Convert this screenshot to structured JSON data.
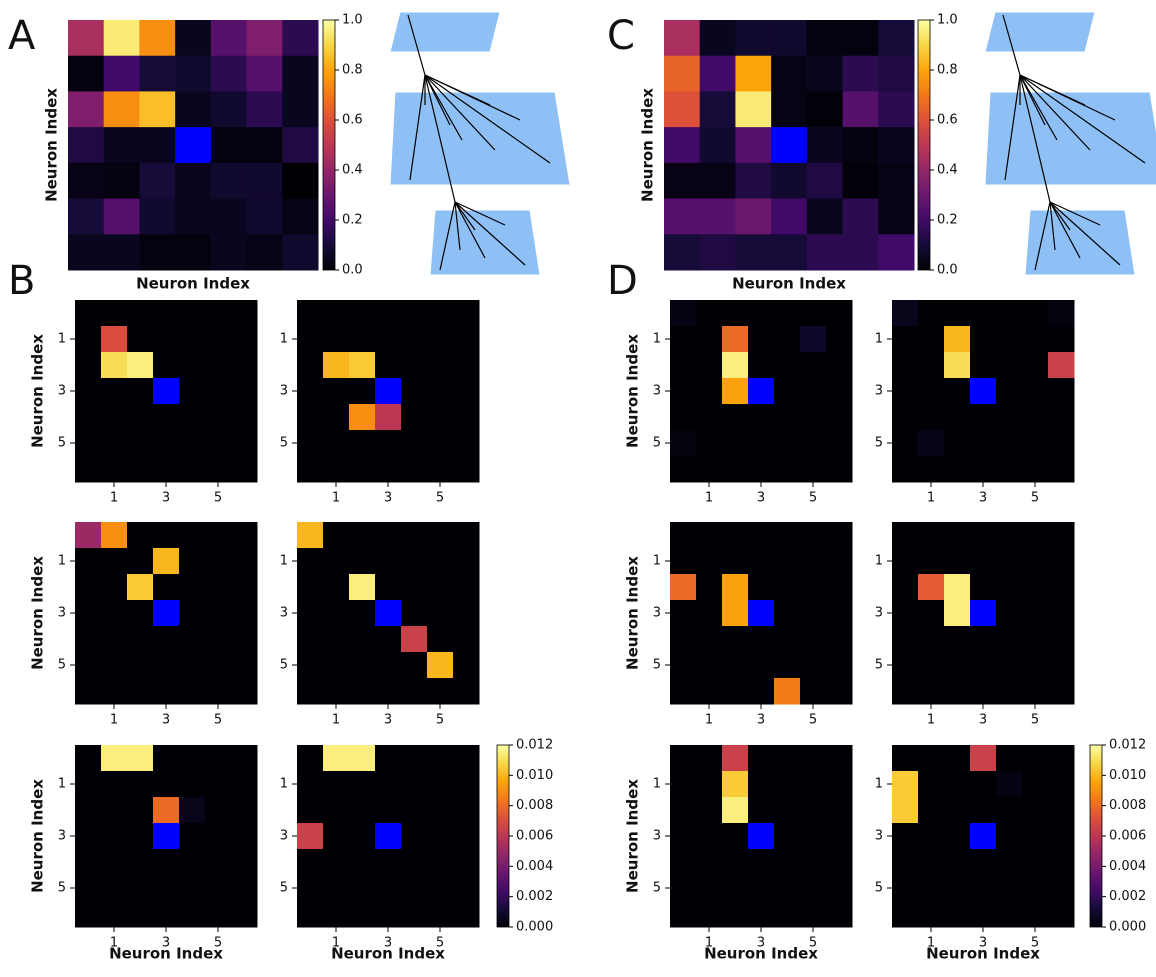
{
  "panel_labels": [
    "A",
    "B",
    "C",
    "D"
  ],
  "chart_data": [
    {
      "type": "heatmap",
      "colormap": "inferno",
      "null_color": "#0000ff",
      "xlabel": "Neuron Index",
      "ylabel": "Neuron Index",
      "zlim": [
        0,
        1
      ],
      "zticks": [
        {
          "value": 0,
          "label": "0.0"
        },
        0.2,
        0.4,
        0.6,
        0.8,
        {
          "value": 1,
          "label": "1.0"
        }
      ],
      "values": [
        [
          0.45,
          0.95,
          0.75,
          0.05,
          0.25,
          0.35,
          0.15
        ],
        [
          0.02,
          0.2,
          0.1,
          0.08,
          0.15,
          0.25,
          0.05
        ],
        [
          0.35,
          0.75,
          0.85,
          0.05,
          0.08,
          0.15,
          0.05
        ],
        [
          0.12,
          0.05,
          0.05,
          null,
          0.02,
          0.02,
          0.12
        ],
        [
          0.03,
          0.02,
          0.1,
          0.05,
          0.08,
          0.08,
          0.0
        ],
        [
          0.1,
          0.25,
          0.08,
          0.05,
          0.05,
          0.08,
          0.03
        ],
        [
          0.05,
          0.05,
          0.02,
          0.02,
          0.05,
          0.03,
          0.08
        ]
      ]
    },
    {
      "type": "heatmap",
      "colormap": "inferno",
      "null_color": "#0000ff",
      "xlabel": "Neuron Index",
      "ylabel": "Neuron Index",
      "zlim": [
        0,
        1
      ],
      "zticks": [
        {
          "value": 0,
          "label": "0.0"
        },
        0.2,
        0.4,
        0.6,
        0.8,
        {
          "value": 1,
          "label": "1.0"
        }
      ],
      "values": [
        [
          0.45,
          0.05,
          0.08,
          0.08,
          0.02,
          0.02,
          0.1
        ],
        [
          0.65,
          0.2,
          0.8,
          0.03,
          0.05,
          0.15,
          0.12
        ],
        [
          0.6,
          0.1,
          0.95,
          0.03,
          0.01,
          0.25,
          0.15
        ],
        [
          0.2,
          0.08,
          0.25,
          null,
          0.05,
          0.02,
          0.05
        ],
        [
          0.03,
          0.03,
          0.12,
          0.08,
          0.12,
          0.01,
          0.03
        ],
        [
          0.25,
          0.25,
          0.3,
          0.2,
          0.05,
          0.15,
          0.03
        ],
        [
          0.1,
          0.12,
          0.1,
          0.1,
          0.15,
          0.15,
          0.2
        ]
      ]
    },
    {
      "type": "heatmap",
      "colormap": "inferno",
      "null_color": "#0000ff",
      "ylabel": "Neuron Index",
      "zlim": [
        0,
        0.012
      ],
      "xticks": [
        1,
        3,
        5
      ],
      "yticks": [
        1,
        3,
        5
      ],
      "values": [
        [
          0,
          0,
          0,
          0,
          0,
          0,
          0
        ],
        [
          0,
          0.007,
          0,
          0,
          0,
          0,
          0
        ],
        [
          0,
          0.011,
          0.0115,
          0,
          0,
          0,
          0
        ],
        [
          0,
          0,
          0,
          null,
          0,
          0,
          0
        ],
        [
          0,
          0,
          0,
          0,
          0,
          0,
          0
        ],
        [
          0,
          0,
          0,
          0,
          0,
          0,
          0
        ],
        [
          0,
          0,
          0,
          0,
          0,
          0,
          0
        ]
      ]
    },
    {
      "type": "heatmap",
      "colormap": "inferno",
      "null_color": "#0000ff",
      "zlim": [
        0,
        0.012
      ],
      "xticks": [
        1,
        3,
        5
      ],
      "yticks": [
        1,
        3,
        5
      ],
      "values": [
        [
          0,
          0,
          0,
          0,
          0,
          0,
          0
        ],
        [
          0,
          0,
          0,
          0,
          0,
          0,
          0
        ],
        [
          0,
          0.01,
          0.0105,
          0,
          0,
          0,
          0
        ],
        [
          0,
          0,
          0,
          null,
          0,
          0,
          0
        ],
        [
          0,
          0,
          0.009,
          0.006,
          0,
          0,
          0
        ],
        [
          0,
          0,
          0,
          0,
          0,
          0,
          0
        ],
        [
          0,
          0,
          0,
          0,
          0,
          0,
          0
        ]
      ]
    },
    {
      "type": "heatmap",
      "colormap": "inferno",
      "null_color": "#0000ff",
      "ylabel": "Neuron Index",
      "zlim": [
        0,
        0.012
      ],
      "xticks": [
        1,
        3,
        5
      ],
      "yticks": [
        1,
        3,
        5
      ],
      "values": [
        [
          0.005,
          0.009,
          0,
          0,
          0,
          0,
          0
        ],
        [
          0,
          0,
          0,
          0.01,
          0,
          0,
          0
        ],
        [
          0,
          0,
          0.0105,
          0,
          0,
          0,
          0
        ],
        [
          0,
          0,
          0,
          null,
          0,
          0,
          0
        ],
        [
          0,
          0,
          0,
          0,
          0,
          0,
          0
        ],
        [
          0,
          0,
          0,
          0,
          0,
          0,
          0
        ],
        [
          0,
          0,
          0,
          0,
          0,
          0,
          0
        ]
      ]
    },
    {
      "type": "heatmap",
      "colormap": "inferno",
      "null_color": "#0000ff",
      "zlim": [
        0,
        0.012
      ],
      "xticks": [
        1,
        3,
        5
      ],
      "yticks": [
        1,
        3,
        5
      ],
      "values": [
        [
          0.01,
          0,
          0,
          0,
          0,
          0,
          0
        ],
        [
          0,
          0,
          0,
          0,
          0,
          0,
          0
        ],
        [
          0,
          0,
          0.0115,
          0,
          0,
          0,
          0
        ],
        [
          0,
          0,
          0,
          null,
          0,
          0,
          0
        ],
        [
          0,
          0,
          0,
          0,
          0.0065,
          0,
          0
        ],
        [
          0,
          0,
          0,
          0,
          0,
          0.01,
          0
        ],
        [
          0,
          0,
          0,
          0,
          0,
          0,
          0
        ]
      ]
    },
    {
      "type": "heatmap",
      "colormap": "inferno",
      "null_color": "#0000ff",
      "xlabel": "Neuron Index",
      "ylabel": "Neuron Index",
      "zlim": [
        0,
        0.012
      ],
      "xticks": [
        1,
        3,
        5
      ],
      "yticks": [
        1,
        3,
        5
      ],
      "values": [
        [
          0,
          0.0115,
          0.0115,
          0,
          0,
          0,
          0
        ],
        [
          0,
          0,
          0,
          0,
          0,
          0,
          0
        ],
        [
          0,
          0,
          0,
          0.008,
          0.0005,
          0,
          0
        ],
        [
          0,
          0,
          0,
          null,
          0,
          0,
          0
        ],
        [
          0,
          0,
          0,
          0,
          0,
          0,
          0
        ],
        [
          0,
          0,
          0,
          0,
          0,
          0,
          0
        ],
        [
          0,
          0,
          0,
          0,
          0,
          0,
          0
        ]
      ]
    },
    {
      "type": "heatmap",
      "colormap": "inferno",
      "null_color": "#0000ff",
      "xlabel": "Neuron Index",
      "zlim": [
        0,
        0.012
      ],
      "xticks": [
        1,
        3,
        5
      ],
      "yticks": [
        1,
        3,
        5
      ],
      "zticks": [
        {
          "value": 0,
          "label": "0.000"
        },
        0.002,
        0.004,
        0.006,
        0.008,
        {
          "value": 0.01,
          "label": "0.010"
        },
        0.012
      ],
      "values": [
        [
          0,
          0.0115,
          0.0115,
          0,
          0,
          0,
          0
        ],
        [
          0,
          0,
          0,
          0,
          0,
          0,
          0
        ],
        [
          0,
          0,
          0,
          0,
          0,
          0,
          0
        ],
        [
          0.0065,
          0,
          0,
          null,
          0,
          0,
          0
        ],
        [
          0,
          0,
          0,
          0,
          0,
          0,
          0
        ],
        [
          0,
          0,
          0,
          0,
          0,
          0,
          0
        ],
        [
          0,
          0,
          0,
          0,
          0,
          0,
          0
        ]
      ]
    },
    {
      "type": "heatmap",
      "colormap": "inferno",
      "null_color": "#0000ff",
      "ylabel": "Neuron Index",
      "zlim": [
        0,
        0.012
      ],
      "xticks": [
        1,
        3,
        5
      ],
      "yticks": [
        1,
        3,
        5
      ],
      "values": [
        [
          0.0003,
          0,
          0,
          0,
          0,
          0,
          0
        ],
        [
          0,
          0,
          0.008,
          0,
          0,
          0.0008,
          0
        ],
        [
          0,
          0,
          0.0115,
          0,
          0,
          0,
          0
        ],
        [
          0,
          0,
          0.0095,
          null,
          0,
          0,
          0
        ],
        [
          0,
          0,
          0,
          0,
          0,
          0,
          0
        ],
        [
          0.0002,
          0,
          0,
          0,
          0,
          0,
          0
        ],
        [
          0,
          0,
          0,
          0,
          0,
          0,
          0
        ]
      ]
    },
    {
      "type": "heatmap",
      "colormap": "inferno",
      "null_color": "#0000ff",
      "zlim": [
        0,
        0.012
      ],
      "xticks": [
        1,
        3,
        5
      ],
      "yticks": [
        1,
        3,
        5
      ],
      "values": [
        [
          0.0005,
          0,
          0,
          0,
          0,
          0,
          0.0002
        ],
        [
          0,
          0,
          0.01,
          0,
          0,
          0,
          0
        ],
        [
          0,
          0,
          0.011,
          0,
          0,
          0,
          0.0065
        ],
        [
          0,
          0,
          0,
          null,
          0,
          0,
          0
        ],
        [
          0,
          0,
          0,
          0,
          0,
          0,
          0
        ],
        [
          0,
          0.0004,
          0,
          0,
          0,
          0,
          0
        ],
        [
          0,
          0,
          0,
          0,
          0,
          0,
          0
        ]
      ]
    },
    {
      "type": "heatmap",
      "colormap": "inferno",
      "null_color": "#0000ff",
      "ylabel": "Neuron Index",
      "zlim": [
        0,
        0.012
      ],
      "xticks": [
        1,
        3,
        5
      ],
      "yticks": [
        1,
        3,
        5
      ],
      "values": [
        [
          0,
          0,
          0,
          0,
          0,
          0,
          0
        ],
        [
          0,
          0,
          0,
          0,
          0,
          0,
          0
        ],
        [
          0.008,
          0,
          0.0095,
          0,
          0,
          0,
          0
        ],
        [
          0,
          0,
          0.0095,
          null,
          0,
          0,
          0
        ],
        [
          0,
          0,
          0,
          0,
          0,
          0,
          0
        ],
        [
          0,
          0,
          0,
          0,
          0,
          0,
          0
        ],
        [
          0,
          0,
          0,
          0,
          0.0085,
          0,
          0
        ]
      ]
    },
    {
      "type": "heatmap",
      "colormap": "inferno",
      "null_color": "#0000ff",
      "zlim": [
        0,
        0.012
      ],
      "xticks": [
        1,
        3,
        5
      ],
      "yticks": [
        1,
        3,
        5
      ],
      "values": [
        [
          0,
          0,
          0,
          0,
          0,
          0,
          0
        ],
        [
          0,
          0,
          0,
          0,
          0,
          0,
          0
        ],
        [
          0,
          0.0075,
          0.0115,
          0,
          0,
          0,
          0
        ],
        [
          0,
          0,
          0.0115,
          null,
          0,
          0,
          0
        ],
        [
          0,
          0,
          0,
          0,
          0,
          0,
          0
        ],
        [
          0,
          0,
          0,
          0,
          0,
          0,
          0
        ],
        [
          0,
          0,
          0,
          0,
          0,
          0,
          0
        ]
      ]
    },
    {
      "type": "heatmap",
      "colormap": "inferno",
      "null_color": "#0000ff",
      "xlabel": "Neuron Index",
      "ylabel": "Neuron Index",
      "zlim": [
        0,
        0.012
      ],
      "xticks": [
        1,
        3,
        5
      ],
      "yticks": [
        1,
        3,
        5
      ],
      "values": [
        [
          0,
          0,
          0.0065,
          0,
          0,
          0,
          0
        ],
        [
          0,
          0,
          0.0105,
          0,
          0,
          0,
          0
        ],
        [
          0,
          0,
          0.0115,
          0,
          0,
          0,
          0
        ],
        [
          0,
          0,
          0,
          null,
          0,
          0,
          0
        ],
        [
          0,
          0,
          0,
          0,
          0,
          0,
          0
        ],
        [
          0,
          0,
          0,
          0,
          0,
          0,
          0
        ],
        [
          0,
          0,
          0,
          0,
          0,
          0,
          0
        ]
      ]
    },
    {
      "type": "heatmap",
      "colormap": "inferno",
      "null_color": "#0000ff",
      "xlabel": "Neuron Index",
      "zlim": [
        0,
        0.012
      ],
      "xticks": [
        1,
        3,
        5
      ],
      "yticks": [
        1,
        3,
        5
      ],
      "zticks": [
        {
          "value": 0,
          "label": "0.000"
        },
        0.002,
        0.004,
        0.006,
        0.008,
        {
          "value": 0.01,
          "label": "0.010"
        },
        0.012
      ],
      "values": [
        [
          0,
          0,
          0,
          0.0065,
          0,
          0,
          0
        ],
        [
          0.0105,
          0,
          0,
          0,
          0.0003,
          0,
          0
        ],
        [
          0.0105,
          0,
          0,
          0,
          0,
          0,
          0
        ],
        [
          0,
          0,
          0,
          null,
          0,
          0,
          0
        ],
        [
          0,
          0,
          0,
          0,
          0,
          0,
          0
        ],
        [
          0,
          0,
          0,
          0,
          0,
          0,
          0
        ],
        [
          0,
          0,
          0,
          0,
          0,
          0,
          0
        ]
      ]
    }
  ]
}
